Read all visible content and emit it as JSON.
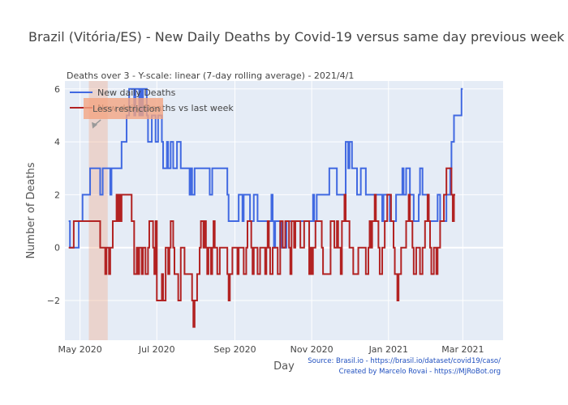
{
  "chart_data": {
    "type": "line",
    "title": "Brazil (Vitória/ES) - New Daily Deaths by Covid-19 versus same day previous week",
    "subtitle": "Deaths over 3 - Y-scale: linear (7-day rolling average) - 2021/4/1",
    "xlabel": "Day",
    "ylabel": "Number of Deaths",
    "ylim": [
      -3.5,
      6.3
    ],
    "xlim": [
      "2020-04-19",
      "2021-04-02"
    ],
    "x_ticks": [
      {
        "date": "2020-05-01",
        "label": "May 2020"
      },
      {
        "date": "2020-07-01",
        "label": "Jul 2020"
      },
      {
        "date": "2020-09-01",
        "label": "Sep 2020"
      },
      {
        "date": "2020-11-01",
        "label": "Nov 2020"
      },
      {
        "date": "2021-01-01",
        "label": "Jan 2021"
      },
      {
        "date": "2021-03-01",
        "label": "Mar 2021"
      }
    ],
    "y_ticks": [
      -2,
      0,
      2,
      4,
      6
    ],
    "y_tick_labels": [
      "−2",
      "0",
      "2",
      "4",
      "6"
    ],
    "grid": true,
    "legend_position": "top-left",
    "highlight_band": {
      "start": "2020-05-08",
      "end": "2020-05-23",
      "color": "#f4a582"
    },
    "annotation": {
      "text": "Less restriction",
      "at": "2020-05-11",
      "y": 4.5,
      "color": "#f4a582"
    },
    "start_date": "2020-04-22",
    "series": [
      {
        "name": "New daily Deaths",
        "color": "#4169e1",
        "values": [
          1,
          0,
          0,
          0,
          0,
          0,
          0,
          0,
          1,
          1,
          1,
          2,
          2,
          2,
          2,
          2,
          2,
          3,
          3,
          3,
          3,
          3,
          3,
          3,
          3,
          2,
          2,
          3,
          3,
          3,
          3,
          3,
          3,
          2,
          3,
          3,
          3,
          3,
          3,
          3,
          3,
          3,
          4,
          4,
          4,
          4,
          5,
          5,
          6,
          6,
          6,
          6,
          5,
          6,
          6,
          6,
          5,
          6,
          5,
          6,
          6,
          6,
          5,
          4,
          4,
          4,
          5,
          5,
          5,
          4,
          4,
          5,
          5,
          5,
          4,
          3,
          3,
          3,
          4,
          3,
          3,
          4,
          4,
          3,
          3,
          3,
          4,
          4,
          4,
          3,
          3,
          3,
          3,
          3,
          3,
          3,
          2,
          3,
          2,
          2,
          3,
          3,
          3,
          3,
          3,
          3,
          3,
          3,
          3,
          3,
          3,
          3,
          2,
          2,
          3,
          3,
          3,
          3,
          3,
          3,
          3,
          3,
          3,
          3,
          3,
          3,
          2,
          1,
          1,
          1,
          1,
          1,
          1,
          1,
          1,
          2,
          2,
          2,
          1,
          2,
          2,
          2,
          2,
          2,
          1,
          1,
          1,
          2,
          2,
          2,
          1,
          1,
          1,
          1,
          1,
          1,
          1,
          1,
          1,
          1,
          1,
          2,
          1,
          0,
          1,
          1,
          1,
          1,
          0,
          1,
          0,
          0,
          0,
          1,
          1,
          1,
          1,
          1,
          1,
          1,
          1,
          1,
          1,
          1,
          1,
          1,
          1,
          1,
          1,
          1,
          1,
          1,
          1,
          1,
          2,
          1,
          1,
          2,
          2,
          2,
          2,
          2,
          2,
          2,
          2,
          2,
          2,
          3,
          3,
          3,
          3,
          3,
          3,
          2,
          2,
          2,
          2,
          2,
          2,
          2,
          4,
          4,
          3,
          4,
          4,
          3,
          3,
          3,
          3,
          2,
          2,
          2,
          3,
          3,
          3,
          3,
          2,
          2,
          2,
          2,
          2,
          2,
          2,
          2,
          2,
          2,
          2,
          2,
          2,
          1,
          2,
          2,
          2,
          2,
          2,
          1,
          1,
          1,
          1,
          1,
          2,
          2,
          2,
          2,
          2,
          3,
          2,
          2,
          3,
          3,
          3,
          2,
          2,
          2,
          1,
          1,
          1,
          1,
          2,
          3,
          3,
          2,
          2,
          2,
          2,
          2,
          1,
          1,
          1,
          1,
          1,
          1,
          1,
          2,
          2,
          1,
          1,
          1,
          1,
          1,
          2,
          2,
          2,
          3,
          4,
          4,
          5,
          5,
          5,
          5,
          5,
          5,
          6,
          6
        ]
      },
      {
        "name": "New daily Deaths vs last week",
        "color": "#b22222",
        "values": [
          0,
          0,
          0,
          0,
          1,
          1,
          1,
          1,
          1,
          1,
          1,
          1,
          1,
          1,
          1,
          1,
          1,
          1,
          1,
          1,
          1,
          1,
          1,
          1,
          1,
          0,
          0,
          0,
          0,
          -1,
          0,
          0,
          -1,
          0,
          0,
          1,
          1,
          1,
          2,
          1,
          2,
          1,
          2,
          2,
          2,
          2,
          2,
          2,
          2,
          2,
          1,
          1,
          -1,
          -1,
          0,
          -1,
          0,
          0,
          -1,
          0,
          0,
          -1,
          -1,
          0,
          1,
          1,
          1,
          0,
          -1,
          1,
          -2,
          -2,
          -2,
          -2,
          -1,
          -2,
          -2,
          0,
          0,
          -1,
          0,
          1,
          1,
          0,
          -1,
          -1,
          -1,
          -2,
          -2,
          0,
          0,
          0,
          -1,
          -1,
          -1,
          -1,
          -1,
          -1,
          -2,
          -3,
          -2,
          -2,
          -1,
          -1,
          0,
          1,
          1,
          0,
          1,
          0,
          -1,
          0,
          0,
          -1,
          0,
          1,
          0,
          0,
          -1,
          -1,
          0,
          0,
          0,
          0,
          0,
          0,
          -1,
          -2,
          -1,
          -1,
          0,
          0,
          0,
          0,
          -1,
          0,
          0,
          0,
          0,
          -1,
          -1,
          0,
          1,
          1,
          1,
          0,
          -1,
          0,
          0,
          0,
          -1,
          -1,
          0,
          0,
          0,
          0,
          -1,
          0,
          1,
          0,
          -1,
          -1,
          0,
          0,
          0,
          0,
          -1,
          -1,
          1,
          1,
          0,
          0,
          1,
          1,
          1,
          0,
          -1,
          1,
          1,
          0,
          1,
          1,
          1,
          1,
          0,
          0,
          0,
          1,
          1,
          1,
          1,
          -1,
          0,
          -1,
          0,
          0,
          1,
          1,
          1,
          1,
          1,
          0,
          -1,
          -1,
          -1,
          -1,
          -1,
          -1,
          1,
          1,
          1,
          0,
          0,
          1,
          0,
          0,
          -1,
          1,
          1,
          2,
          1,
          1,
          1,
          0,
          0,
          0,
          -1,
          -1,
          -1,
          -1,
          0,
          0,
          0,
          0,
          0,
          0,
          -1,
          -1,
          0,
          1,
          0,
          1,
          1,
          2,
          1,
          1,
          0,
          -1,
          -1,
          0,
          0,
          1,
          1,
          2,
          2,
          2,
          1,
          1,
          0,
          -1,
          -1,
          -2,
          -1,
          -1,
          0,
          0,
          0,
          0,
          1,
          1,
          2,
          1,
          1,
          0,
          -1,
          -1,
          0,
          0,
          0,
          -1,
          -1,
          0,
          0,
          1,
          1,
          2,
          1,
          0,
          -1,
          -1,
          0,
          0,
          -1,
          0,
          0,
          1,
          1,
          1,
          2,
          2,
          3,
          3,
          3,
          3,
          2,
          1,
          2,
          2
        ]
      }
    ],
    "source_lines": [
      "Source: Brasil.io - https://brasil.io/dataset/covid19/caso/",
      "Created by Marcelo Rovai - https://MJRoBot.org"
    ]
  }
}
